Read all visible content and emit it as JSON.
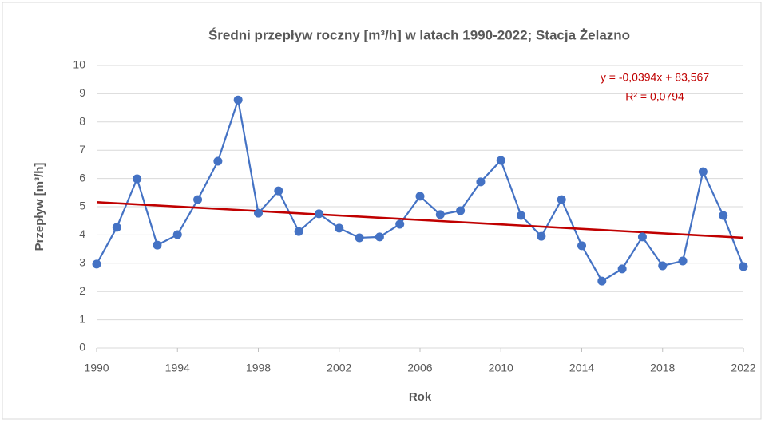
{
  "chart_data": {
    "type": "line",
    "title": "Średni przepływ roczny [m³/h] w latach 1990-2022; Stacja Żelazno",
    "xlabel": "Rok",
    "ylabel": "Przepływ [m³/h]",
    "x": [
      1990,
      1991,
      1992,
      1993,
      1994,
      1995,
      1996,
      1997,
      1998,
      1999,
      2000,
      2001,
      2002,
      2003,
      2004,
      2005,
      2006,
      2007,
      2008,
      2009,
      2010,
      2011,
      2012,
      2013,
      2014,
      2015,
      2016,
      2017,
      2018,
      2019,
      2020,
      2021,
      2022
    ],
    "series": [
      {
        "name": "Przepływ",
        "color": "#4472c4",
        "values": [
          2.97,
          4.27,
          5.99,
          3.64,
          4.01,
          5.25,
          6.61,
          8.78,
          4.77,
          5.56,
          4.12,
          4.75,
          4.24,
          3.9,
          3.93,
          4.38,
          5.37,
          4.72,
          4.86,
          5.88,
          6.64,
          4.69,
          3.95,
          5.25,
          3.62,
          2.37,
          2.8,
          3.93,
          2.91,
          3.08,
          6.24,
          4.69,
          2.88
        ]
      }
    ],
    "trendline": {
      "label": "y = -0,0394x + 83,567",
      "r2_label": "R² = 0,0794",
      "slope": -0.0394,
      "intercept": 83.567,
      "color": "#c00000"
    },
    "xlim": [
      1990,
      2022
    ],
    "xticks": [
      1990,
      1994,
      1998,
      2002,
      2006,
      2010,
      2014,
      2018,
      2022
    ],
    "ylim": [
      0,
      10
    ],
    "yticks": [
      0,
      1,
      2,
      3,
      4,
      5,
      6,
      7,
      8,
      9,
      10
    ],
    "grid": true
  }
}
